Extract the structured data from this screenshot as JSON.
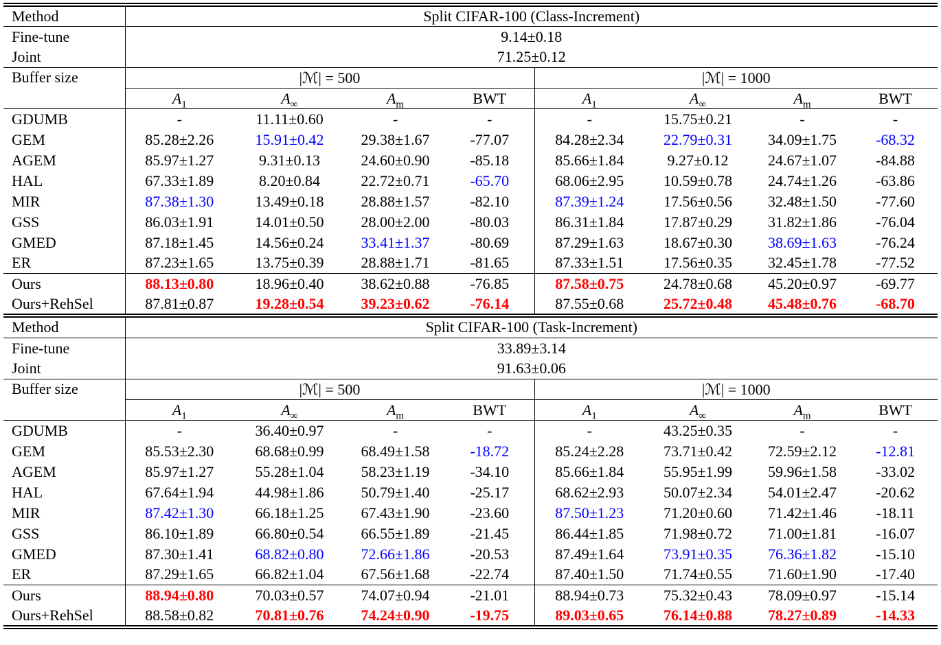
{
  "table": {
    "colors": {
      "best_value": "#ff0000",
      "runner_up_value": "#0000ff",
      "text": "#000000"
    },
    "sections": [
      {
        "method_header": "Method",
        "title": "Split CIFAR-100 (Class-Increment)",
        "finetune_label": "Fine-tune",
        "finetune_value": "9.14±0.18",
        "joint_label": "Joint",
        "joint_value": "71.25±0.12",
        "buffer_label": "Buffer size",
        "buffer_groups": [
          "|ℳ| = 500",
          "|ℳ| = 1000"
        ],
        "metric_headers": [
          {
            "base": "A",
            "sub": "1"
          },
          {
            "base": "A",
            "sub": "∞"
          },
          {
            "base": "A",
            "sub": "m"
          },
          {
            "base": "BWT",
            "sub": ""
          },
          {
            "base": "A",
            "sub": "1"
          },
          {
            "base": "A",
            "sub": "∞"
          },
          {
            "base": "A",
            "sub": "m"
          },
          {
            "base": "BWT",
            "sub": ""
          }
        ],
        "baseline_rows": [
          {
            "method": "GDUMB",
            "cells": [
              "-",
              "11.11±0.60",
              "-",
              "-",
              "-",
              "15.75±0.21",
              "-",
              "-"
            ]
          },
          {
            "method": "GEM",
            "cells": [
              "85.28±2.26",
              {
                "v": "15.91±0.42",
                "c": "blue"
              },
              "29.38±1.67",
              "-77.07",
              "84.28±2.34",
              {
                "v": "22.79±0.31",
                "c": "blue"
              },
              "34.09±1.75",
              {
                "v": "-68.32",
                "c": "blue"
              }
            ]
          },
          {
            "method": "AGEM",
            "cells": [
              "85.97±1.27",
              "9.31±0.13",
              "24.60±0.90",
              "-85.18",
              "85.66±1.84",
              "9.27±0.12",
              "24.67±1.07",
              "-84.88"
            ]
          },
          {
            "method": "HAL",
            "cells": [
              "67.33±1.89",
              "8.20±0.84",
              "22.72±0.71",
              {
                "v": "-65.70",
                "c": "blue"
              },
              "68.06±2.95",
              "10.59±0.78",
              "24.74±1.26",
              "-63.86"
            ]
          },
          {
            "method": "MIR",
            "cells": [
              {
                "v": "87.38±1.30",
                "c": "blue"
              },
              "13.49±0.18",
              "28.88±1.57",
              "-82.10",
              {
                "v": "87.39±1.24",
                "c": "blue"
              },
              "17.56±0.56",
              "32.48±1.50",
              "-77.60"
            ]
          },
          {
            "method": "GSS",
            "cells": [
              "86.03±1.91",
              "14.01±0.50",
              "28.00±2.00",
              "-80.03",
              "86.31±1.84",
              "17.87±0.29",
              "31.82±1.86",
              "-76.04"
            ]
          },
          {
            "method": "GMED",
            "cells": [
              "87.18±1.45",
              "14.56±0.24",
              {
                "v": "33.41±1.37",
                "c": "blue"
              },
              "-80.69",
              "87.29±1.63",
              "18.67±0.30",
              {
                "v": "38.69±1.63",
                "c": "blue"
              },
              "-76.24"
            ]
          },
          {
            "method": "ER",
            "cells": [
              "87.23±1.65",
              "13.75±0.39",
              "28.88±1.71",
              "-81.65",
              "87.33±1.51",
              "17.56±0.35",
              "32.45±1.78",
              "-77.52"
            ]
          }
        ],
        "ours_rows": [
          {
            "method": "Ours",
            "cells": [
              {
                "v": "88.13±0.80",
                "c": "red"
              },
              "18.96±0.40",
              "38.62±0.88",
              "-76.85",
              {
                "v": "87.58±0.75",
                "c": "red"
              },
              "24.78±0.68",
              "45.20±0.97",
              "-69.77"
            ]
          },
          {
            "method": "Ours+RehSel",
            "cells": [
              "87.81±0.87",
              {
                "v": "19.28±0.54",
                "c": "red"
              },
              {
                "v": "39.23±0.62",
                "c": "red"
              },
              {
                "v": "-76.14",
                "c": "red"
              },
              "87.55±0.68",
              {
                "v": "25.72±0.48",
                "c": "red"
              },
              {
                "v": "45.48±0.76",
                "c": "red"
              },
              {
                "v": "-68.70",
                "c": "red"
              }
            ]
          }
        ]
      },
      {
        "method_header": "Method",
        "title": "Split CIFAR-100 (Task-Increment)",
        "finetune_label": "Fine-tune",
        "finetune_value": "33.89±3.14",
        "joint_label": "Joint",
        "joint_value": "91.63±0.06",
        "buffer_label": "Buffer size",
        "buffer_groups": [
          "|ℳ| = 500",
          "|ℳ| = 1000"
        ],
        "metric_headers": [
          {
            "base": "A",
            "sub": "1"
          },
          {
            "base": "A",
            "sub": "∞"
          },
          {
            "base": "A",
            "sub": "m"
          },
          {
            "base": "BWT",
            "sub": ""
          },
          {
            "base": "A",
            "sub": "1"
          },
          {
            "base": "A",
            "sub": "∞"
          },
          {
            "base": "A",
            "sub": "m"
          },
          {
            "base": "BWT",
            "sub": ""
          }
        ],
        "baseline_rows": [
          {
            "method": "GDUMB",
            "cells": [
              "-",
              "36.40±0.97",
              "-",
              "-",
              "-",
              "43.25±0.35",
              "-",
              "-"
            ]
          },
          {
            "method": "GEM",
            "cells": [
              "85.53±2.30",
              "68.68±0.99",
              "68.49±1.58",
              {
                "v": "-18.72",
                "c": "blue"
              },
              "85.24±2.28",
              "73.71±0.42",
              "72.59±2.12",
              {
                "v": "-12.81",
                "c": "blue"
              }
            ]
          },
          {
            "method": "AGEM",
            "cells": [
              "85.97±1.27",
              "55.28±1.04",
              "58.23±1.19",
              "-34.10",
              "85.66±1.84",
              "55.95±1.99",
              "59.96±1.58",
              "-33.02"
            ]
          },
          {
            "method": "HAL",
            "cells": [
              "67.64±1.94",
              "44.98±1.86",
              "50.79±1.40",
              "-25.17",
              "68.62±2.93",
              "50.07±2.34",
              "54.01±2.47",
              "-20.62"
            ]
          },
          {
            "method": "MIR",
            "cells": [
              {
                "v": "87.42±1.30",
                "c": "blue"
              },
              "66.18±1.25",
              "67.43±1.90",
              "-23.60",
              {
                "v": "87.50±1.23",
                "c": "blue"
              },
              "71.20±0.60",
              "71.42±1.46",
              "-18.11"
            ]
          },
          {
            "method": "GSS",
            "cells": [
              "86.10±1.89",
              "66.80±0.54",
              "66.55±1.89",
              "-21.45",
              "86.44±1.85",
              "71.98±0.72",
              "71.00±1.81",
              "-16.07"
            ]
          },
          {
            "method": "GMED",
            "cells": [
              "87.30±1.41",
              {
                "v": "68.82±0.80",
                "c": "blue"
              },
              {
                "v": "72.66±1.86",
                "c": "blue"
              },
              "-20.53",
              "87.49±1.64",
              {
                "v": "73.91±0.35",
                "c": "blue"
              },
              {
                "v": "76.36±1.82",
                "c": "blue"
              },
              "-15.10"
            ]
          },
          {
            "method": "ER",
            "cells": [
              "87.29±1.65",
              "66.82±1.04",
              "67.56±1.68",
              "-22.74",
              "87.40±1.50",
              "71.74±0.55",
              "71.60±1.90",
              "-17.40"
            ]
          }
        ],
        "ours_rows": [
          {
            "method": "Ours",
            "cells": [
              {
                "v": "88.94±0.80",
                "c": "red"
              },
              "70.03±0.57",
              "74.07±0.94",
              "-21.01",
              "88.94±0.73",
              "75.32±0.43",
              "78.09±0.97",
              "-15.14"
            ]
          },
          {
            "method": "Ours+RehSel",
            "cells": [
              "88.58±0.82",
              {
                "v": "70.81±0.76",
                "c": "red"
              },
              {
                "v": "74.24±0.90",
                "c": "red"
              },
              {
                "v": "-19.75",
                "c": "red"
              },
              {
                "v": "89.03±0.65",
                "c": "red"
              },
              {
                "v": "76.14±0.88",
                "c": "red"
              },
              {
                "v": "78.27±0.89",
                "c": "red"
              },
              {
                "v": "-14.33",
                "c": "red"
              }
            ]
          }
        ]
      }
    ]
  }
}
